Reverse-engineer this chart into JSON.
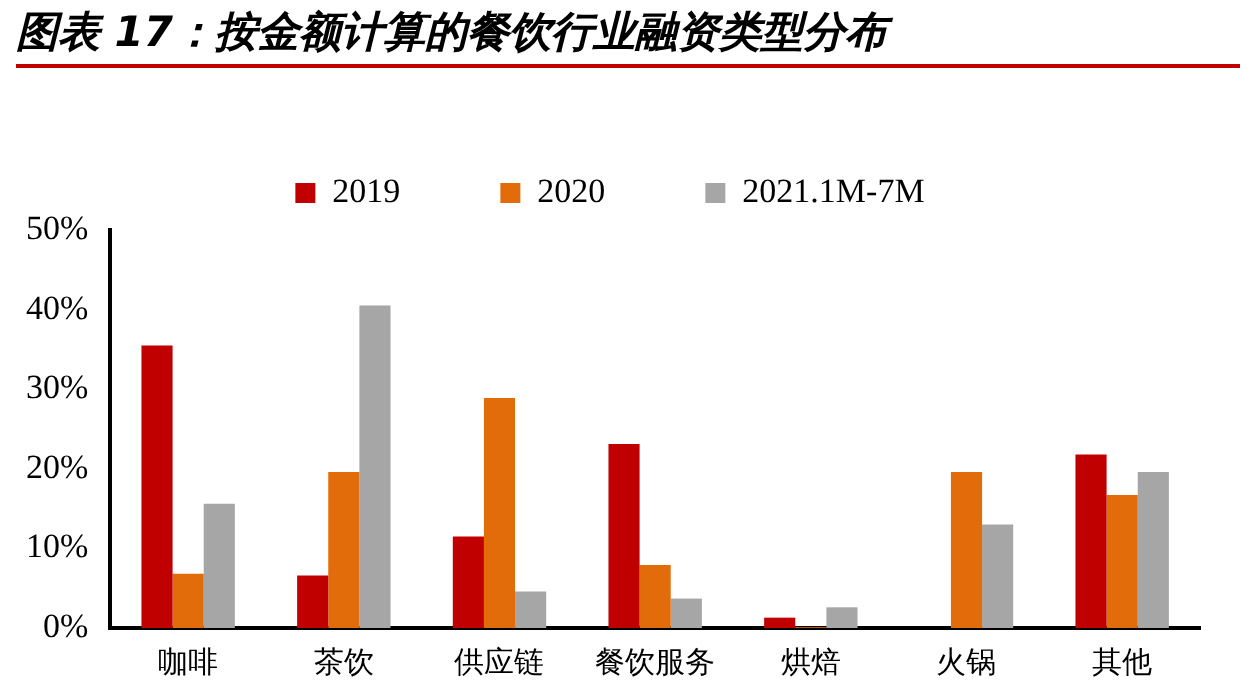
{
  "chart_data": {
    "type": "bar",
    "title": "图表 17：按金额计算的餐饮行业融资类型分布",
    "categories": [
      "咖啡",
      "茶饮",
      "供应链",
      "餐饮服务",
      "烘焙",
      "火锅",
      "其他"
    ],
    "series": [
      {
        "name": "2019",
        "color": "#c00000",
        "values": [
          35.5,
          6.6,
          11.5,
          23.1,
          1.3,
          0,
          21.8
        ]
      },
      {
        "name": "2020",
        "color": "#e36c0a",
        "values": [
          6.8,
          19.6,
          28.9,
          7.9,
          0.1,
          19.6,
          16.7
        ]
      },
      {
        "name": "2021.1M-7M",
        "color": "#a6a6a6",
        "values": [
          15.6,
          40.5,
          4.6,
          3.7,
          2.6,
          13.0,
          19.6
        ]
      }
    ],
    "ylim": [
      0,
      50
    ],
    "yticks": [
      {
        "value": 0,
        "label": "0%"
      },
      {
        "value": 10,
        "label": "10%"
      },
      {
        "value": 20,
        "label": "20%"
      },
      {
        "value": 30,
        "label": "30%"
      },
      {
        "value": 40,
        "label": "40%"
      },
      {
        "value": 50,
        "label": "50%"
      }
    ],
    "grid": false,
    "legend": "top"
  }
}
